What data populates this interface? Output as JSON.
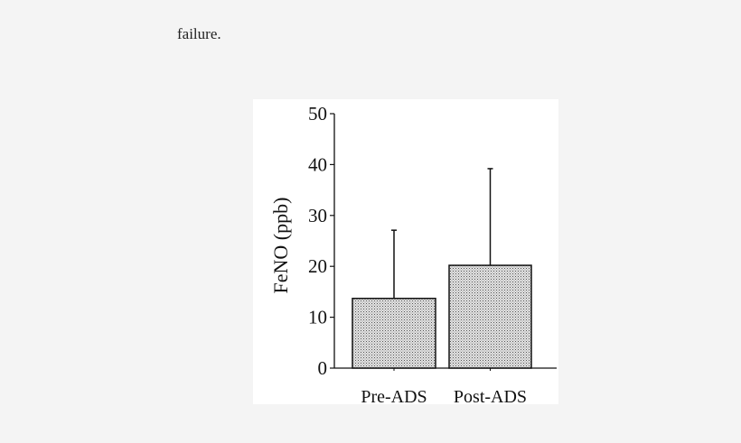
{
  "caption_fragment": "failure.",
  "chart_data": {
    "type": "bar",
    "categories": [
      "Pre-ADS",
      "Post-ADS"
    ],
    "values": [
      13.7,
      20.2
    ],
    "error_upper": [
      27.1,
      39.2
    ],
    "ylabel": "FeNO (ppb)",
    "xlabel": "",
    "ylim": [
      0,
      50
    ],
    "yticks": [
      0,
      10,
      20,
      30,
      40,
      50
    ],
    "grid": false,
    "bar_fill": "stippled gray",
    "colors": {
      "bar": "#c8c8c8",
      "axis": "#111111"
    }
  }
}
